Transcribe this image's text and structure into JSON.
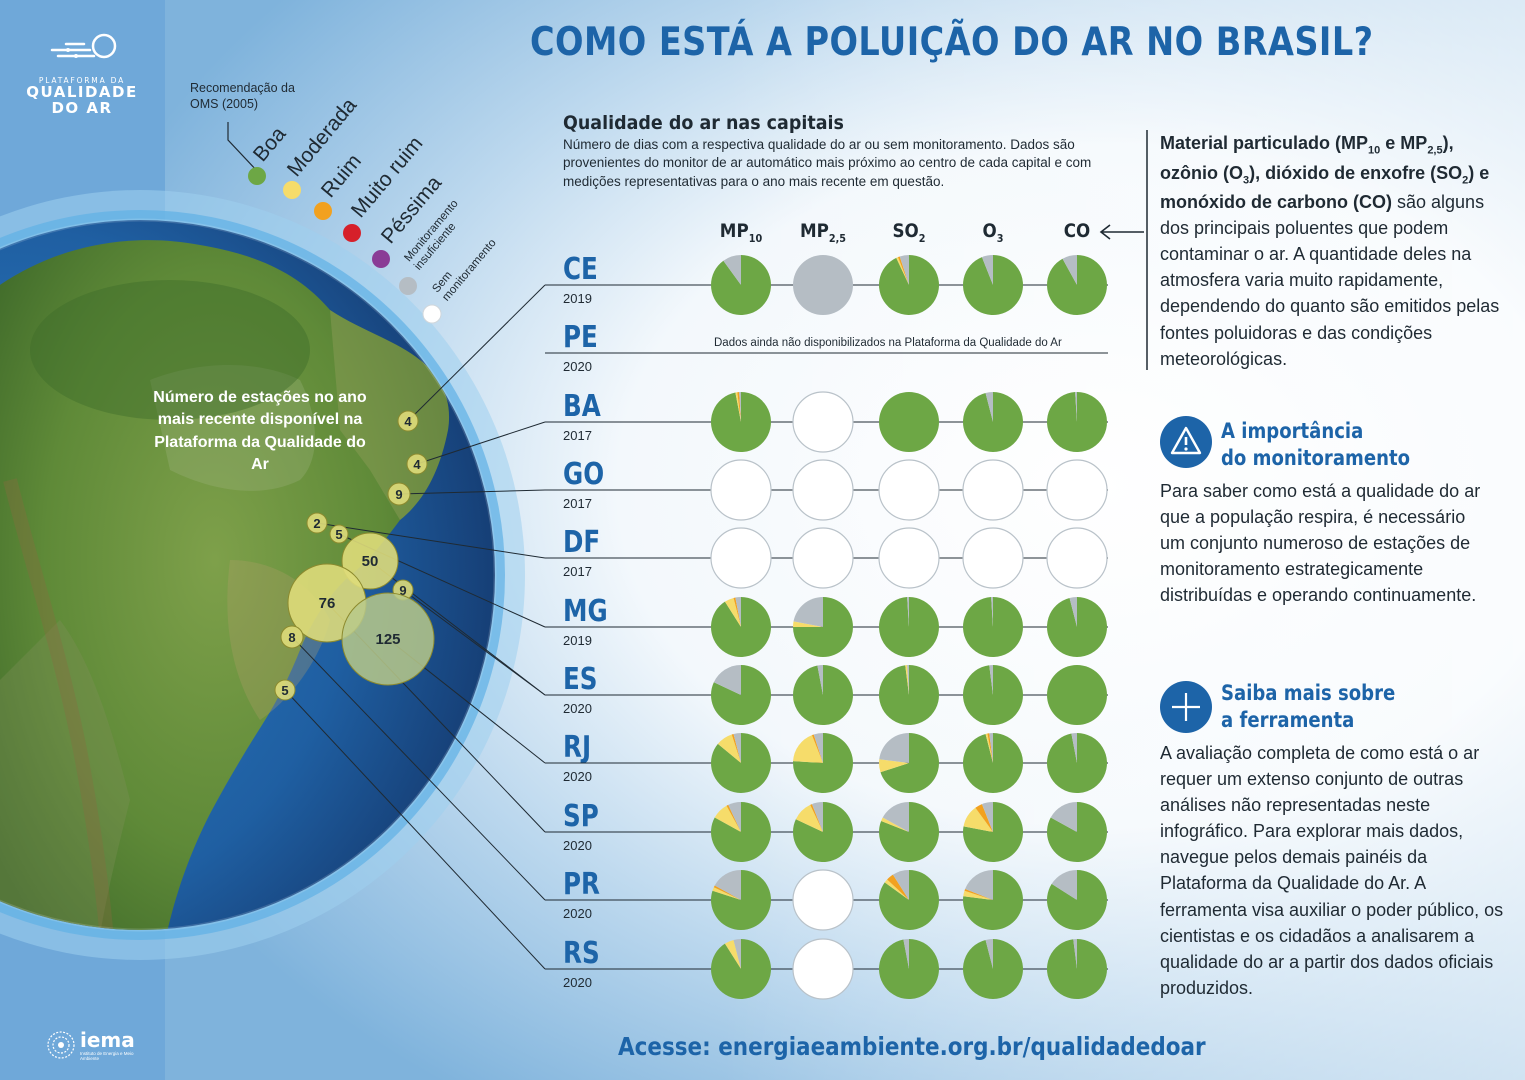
{
  "title": "COMO ESTÁ A POLUIÇÃO DO AR NO BRASIL?",
  "logo": {
    "line1": "PLATAFORMA DA",
    "line2": "QUALIDADE",
    "line3": "DO AR"
  },
  "legend": {
    "title": "Recomendação da OMS (2005)",
    "items": [
      {
        "label": "Boa",
        "color": "#6da745"
      },
      {
        "label": "Moderada",
        "color": "#f6dc6a"
      },
      {
        "label": "Ruim",
        "color": "#f2a11f"
      },
      {
        "label": "Muito ruim",
        "color": "#d6202a"
      },
      {
        "label": "Péssima",
        "color": "#8a3c96"
      },
      {
        "label": "Monitoramento insuficiente",
        "color": "#b5bdc4"
      },
      {
        "label": "Sem monitoramento",
        "color": "#ffffff"
      }
    ]
  },
  "map": {
    "caption": "Número de estações no ano mais recente disponível na Plataforma da Qualidade do Ar",
    "stations": [
      "4",
      "4",
      "9",
      "2",
      "5",
      "50",
      "9",
      "76",
      "125",
      "8",
      "5"
    ]
  },
  "panel": {
    "title": "Qualidade do ar nas capitais",
    "description": "Número de dias com a respectiva qualidade do ar ou sem monitoramento. Dados são provenientes do monitor de ar automático mais próximo ao centro de cada capital e com medições representativas para o ano mais recente em questão.",
    "columns": [
      {
        "base": "MP",
        "sub": "10"
      },
      {
        "base": "MP",
        "sub": "2,5"
      },
      {
        "base": "SO",
        "sub": "2"
      },
      {
        "base": "O",
        "sub": "3"
      },
      {
        "base": "CO",
        "sub": ""
      }
    ],
    "unavailable_note": "Dados ainda não disponibilizados na Plataforma da Qualidade do Ar"
  },
  "chart_data": {
    "type": "pie",
    "unit": "share of days in year",
    "category_order": [
      "Boa",
      "Moderada",
      "Ruim",
      "Muito ruim",
      "Péssima",
      "Monitoramento insuficiente",
      "Sem monitoramento"
    ],
    "rows": [
      {
        "state": "CE",
        "year": "2019",
        "pies": [
          {
            "Boa": 0.9,
            "Monitoramento insuficiente": 0.1
          },
          {
            "Monitoramento insuficiente": 1.0
          },
          {
            "Boa": 0.93,
            "Moderada": 0.01,
            "Ruim": 0.01,
            "Monitoramento insuficiente": 0.05
          },
          {
            "Boa": 0.94,
            "Monitoramento insuficiente": 0.06
          },
          {
            "Boa": 0.92,
            "Monitoramento insuficiente": 0.08
          }
        ]
      },
      {
        "state": "PE",
        "year": "2020",
        "pies": null
      },
      {
        "state": "BA",
        "year": "2017",
        "pies": [
          {
            "Boa": 0.97,
            "Moderada": 0.01,
            "Ruim": 0.01,
            "Monitoramento insuficiente": 0.01
          },
          {
            "Sem monitoramento": 1.0
          },
          {
            "Boa": 1.0
          },
          {
            "Boa": 0.96,
            "Monitoramento insuficiente": 0.04
          },
          {
            "Boa": 0.99,
            "Monitoramento insuficiente": 0.01
          }
        ]
      },
      {
        "state": "GO",
        "year": "2017",
        "pies": [
          {
            "Sem monitoramento": 1.0
          },
          {
            "Sem monitoramento": 1.0
          },
          {
            "Sem monitoramento": 1.0
          },
          {
            "Sem monitoramento": 1.0
          },
          {
            "Sem monitoramento": 1.0
          }
        ]
      },
      {
        "state": "DF",
        "year": "2017",
        "pies": [
          {
            "Sem monitoramento": 1.0
          },
          {
            "Sem monitoramento": 1.0
          },
          {
            "Sem monitoramento": 1.0
          },
          {
            "Sem monitoramento": 1.0
          },
          {
            "Sem monitoramento": 1.0
          }
        ]
      },
      {
        "state": "MG",
        "year": "2019",
        "pies": [
          {
            "Boa": 0.91,
            "Moderada": 0.05,
            "Ruim": 0.01,
            "Monitoramento insuficiente": 0.03
          },
          {
            "Boa": 0.75,
            "Moderada": 0.03,
            "Monitoramento insuficiente": 0.22
          },
          {
            "Boa": 0.99,
            "Monitoramento insuficiente": 0.01
          },
          {
            "Boa": 0.99,
            "Monitoramento insuficiente": 0.01
          },
          {
            "Boa": 0.96,
            "Monitoramento insuficiente": 0.04
          }
        ]
      },
      {
        "state": "ES",
        "year": "2020",
        "pies": [
          {
            "Boa": 0.82,
            "Monitoramento insuficiente": 0.18
          },
          {
            "Boa": 0.97,
            "Monitoramento insuficiente": 0.03
          },
          {
            "Boa": 0.98,
            "Moderada": 0.01,
            "Monitoramento insuficiente": 0.01
          },
          {
            "Boa": 0.98,
            "Monitoramento insuficiente": 0.02
          },
          {
            "Boa": 1.0
          }
        ]
      },
      {
        "state": "RJ",
        "year": "2020",
        "pies": [
          {
            "Boa": 0.86,
            "Moderada": 0.09,
            "Ruim": 0.01,
            "Monitoramento insuficiente": 0.04
          },
          {
            "Boa": 0.76,
            "Moderada": 0.18,
            "Ruim": 0.01,
            "Monitoramento insuficiente": 0.05
          },
          {
            "Boa": 0.7,
            "Moderada": 0.07,
            "Monitoramento insuficiente": 0.23
          },
          {
            "Boa": 0.96,
            "Moderada": 0.01,
            "Ruim": 0.01,
            "Monitoramento insuficiente": 0.02
          },
          {
            "Boa": 0.97,
            "Monitoramento insuficiente": 0.03
          }
        ]
      },
      {
        "state": "SP",
        "year": "2020",
        "pies": [
          {
            "Boa": 0.83,
            "Moderada": 0.09,
            "Ruim": 0.01,
            "Monitoramento insuficiente": 0.07
          },
          {
            "Boa": 0.82,
            "Moderada": 0.11,
            "Ruim": 0.01,
            "Monitoramento insuficiente": 0.06
          },
          {
            "Boa": 0.81,
            "Moderada": 0.02,
            "Monitoramento insuficiente": 0.17
          },
          {
            "Boa": 0.78,
            "Moderada": 0.12,
            "Ruim": 0.04,
            "Monitoramento insuficiente": 0.06
          },
          {
            "Boa": 0.83,
            "Monitoramento insuficiente": 0.17
          }
        ]
      },
      {
        "state": "PR",
        "year": "2020",
        "pies": [
          {
            "Boa": 0.8,
            "Moderada": 0.02,
            "Ruim": 0.01,
            "Monitoramento insuficiente": 0.17
          },
          {
            "Sem monitoramento": 1.0
          },
          {
            "Boa": 0.85,
            "Moderada": 0.02,
            "Ruim": 0.04,
            "Monitoramento insuficiente": 0.09
          },
          {
            "Boa": 0.77,
            "Moderada": 0.03,
            "Ruim": 0.01,
            "Monitoramento insuficiente": 0.19
          },
          {
            "Boa": 0.84,
            "Monitoramento insuficiente": 0.16
          }
        ]
      },
      {
        "state": "RS",
        "year": "2020",
        "pies": [
          {
            "Boa": 0.91,
            "Moderada": 0.05,
            "Monitoramento insuficiente": 0.04
          },
          {
            "Sem monitoramento": 1.0
          },
          {
            "Boa": 0.97,
            "Monitoramento insuficiente": 0.03
          },
          {
            "Boa": 0.96,
            "Monitoramento insuficiente": 0.04
          },
          {
            "Boa": 0.98,
            "Monitoramento insuficiente": 0.02
          }
        ]
      }
    ]
  },
  "info": {
    "intro": {
      "p1": "Material particulado (MP",
      "p1sub": "10",
      "p2": " e MP",
      "p2sub": "2,5",
      "p3": "), ozônio (O",
      "p3sub": "3",
      "p4": "), dióxido de enxofre (SO",
      "p4sub": "2",
      "p5": ") e monóxido de carbono (CO)",
      "rest": " são alguns dos principais poluentes que podem contaminar o ar. A quantidade deles na atmosfera varia muito rapidamente, dependendo do quanto são emitidos pelas fontes poluidoras e das condições meteorológicas."
    },
    "section1": {
      "title1": "A importância",
      "title2": "do monitoramento",
      "icon": "warning-icon",
      "text": "Para saber como está a qualidade do ar que a população respira, é necessário um conjunto numeroso de estações de monitoramento estrategicamente distribuídas e operando continuamente."
    },
    "section2": {
      "title1": "Saiba mais sobre",
      "title2": "a ferramenta",
      "icon": "plus-icon",
      "text": "A avaliação completa de como está o ar requer um extenso conjunto de outras análises não representadas neste infográfico. Para explorar mais dados, navegue pelos demais painéis da Plataforma da Qualidade do Ar. A ferramenta visa auxiliar o poder público, os cientistas e os cidadãos a analisarem a qualidade do ar a partir dos dados oficiais produzidos."
    }
  },
  "footer": {
    "link": "Acesse: energiaeambiente.org.br/qualidadedoar"
  },
  "brand": {
    "name": "iema",
    "subtitle": "Instituto de Energia e Meio Ambiente"
  }
}
